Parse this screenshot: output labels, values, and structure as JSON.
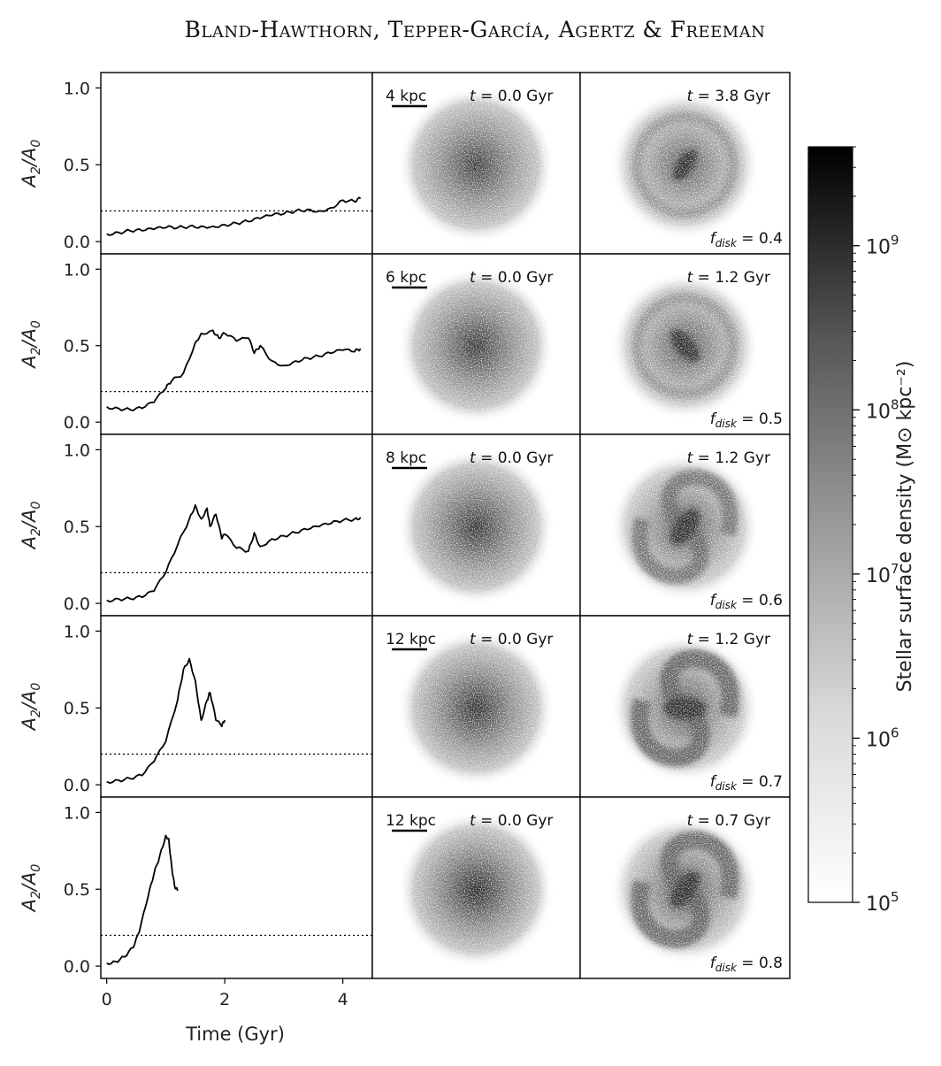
{
  "header": {
    "authors": "Bland-Hawthorn, Tepper-García, Agertz & Freeman"
  },
  "colorbar": {
    "label": "Stellar surface density (M⊙ kpc⁻²)",
    "ticks": [
      "10",
      "10",
      "10",
      "10",
      "10"
    ],
    "tick_exponents": [
      "9",
      "8",
      "7",
      "6",
      "5"
    ],
    "scale": "log",
    "range": [
      100000,
      4000000000
    ],
    "colormap": "grayscale (white to black)"
  },
  "chart_data": [
    {
      "type": "line",
      "ylabel": "A2/A0",
      "xlabel": "",
      "ylim": [
        -0.08,
        1.1
      ],
      "xlim": [
        -0.1,
        4.5
      ],
      "yticks": [
        "0.0",
        "0.5",
        "1.0"
      ],
      "xticks": [],
      "threshold": 0.2,
      "series": [
        {
          "x": [
            0,
            0.2,
            0.4,
            0.6,
            0.8,
            1.0,
            1.2,
            1.4,
            1.6,
            1.8,
            2.0,
            2.2,
            2.4,
            2.6,
            2.8,
            3.0,
            3.2,
            3.4,
            3.6,
            3.8,
            4.0,
            4.2,
            4.3
          ],
          "y": [
            0.05,
            0.06,
            0.07,
            0.07,
            0.08,
            0.09,
            0.09,
            0.1,
            0.1,
            0.1,
            0.11,
            0.12,
            0.13,
            0.15,
            0.17,
            0.18,
            0.2,
            0.21,
            0.2,
            0.22,
            0.27,
            0.26,
            0.28
          ]
        }
      ]
    },
    {
      "type": "line",
      "ylabel": "A2/A0",
      "xlabel": "",
      "ylim": [
        -0.08,
        1.1
      ],
      "xlim": [
        -0.1,
        4.5
      ],
      "yticks": [
        "0.0",
        "0.5",
        "1.0"
      ],
      "xticks": [],
      "threshold": 0.2,
      "series": [
        {
          "x": [
            0,
            0.2,
            0.4,
            0.6,
            0.8,
            1.0,
            1.1,
            1.3,
            1.5,
            1.6,
            1.8,
            1.9,
            2.0,
            2.2,
            2.4,
            2.5,
            2.6,
            2.8,
            3.0,
            3.2,
            3.4,
            3.6,
            3.8,
            4.0,
            4.2,
            4.3
          ],
          "y": [
            0.1,
            0.09,
            0.08,
            0.09,
            0.13,
            0.22,
            0.27,
            0.32,
            0.52,
            0.58,
            0.6,
            0.55,
            0.58,
            0.53,
            0.55,
            0.45,
            0.5,
            0.4,
            0.37,
            0.4,
            0.42,
            0.43,
            0.45,
            0.47,
            0.46,
            0.48
          ]
        }
      ]
    },
    {
      "type": "line",
      "ylabel": "A2/A0",
      "xlabel": "",
      "ylim": [
        -0.08,
        1.1
      ],
      "xlim": [
        -0.1,
        4.5
      ],
      "yticks": [
        "0.0",
        "0.5",
        "1.0"
      ],
      "xticks": [],
      "threshold": 0.2,
      "series": [
        {
          "x": [
            0,
            0.2,
            0.4,
            0.6,
            0.8,
            1.0,
            1.2,
            1.4,
            1.5,
            1.6,
            1.7,
            1.75,
            1.85,
            1.95,
            2.0,
            2.2,
            2.4,
            2.5,
            2.6,
            2.8,
            3.0,
            3.2,
            3.4,
            3.6,
            3.8,
            4.0,
            4.2,
            4.3
          ],
          "y": [
            0.02,
            0.03,
            0.03,
            0.04,
            0.08,
            0.2,
            0.38,
            0.55,
            0.64,
            0.55,
            0.62,
            0.5,
            0.58,
            0.42,
            0.45,
            0.36,
            0.34,
            0.46,
            0.37,
            0.42,
            0.44,
            0.46,
            0.48,
            0.5,
            0.52,
            0.54,
            0.55,
            0.56
          ]
        }
      ]
    },
    {
      "type": "line",
      "ylabel": "A2/A0",
      "xlabel": "",
      "ylim": [
        -0.08,
        1.1
      ],
      "xlim": [
        -0.1,
        4.5
      ],
      "yticks": [
        "0.0",
        "0.5",
        "1.0"
      ],
      "xticks": [],
      "threshold": 0.2,
      "series": [
        {
          "x": [
            0,
            0.2,
            0.4,
            0.6,
            0.8,
            1.0,
            1.2,
            1.3,
            1.4,
            1.5,
            1.6,
            1.7,
            1.75,
            1.85,
            1.95,
            2.0
          ],
          "y": [
            0.02,
            0.03,
            0.04,
            0.06,
            0.15,
            0.28,
            0.55,
            0.75,
            0.82,
            0.68,
            0.42,
            0.55,
            0.6,
            0.42,
            0.38,
            0.42
          ]
        }
      ]
    },
    {
      "type": "line",
      "ylabel": "A2/A0",
      "xlabel": "Time (Gyr)",
      "ylim": [
        -0.08,
        1.1
      ],
      "xlim": [
        -0.1,
        4.5
      ],
      "yticks": [
        "0.0",
        "0.5",
        "1.0"
      ],
      "xticks": [
        "0",
        "2",
        "4"
      ],
      "threshold": 0.2,
      "series": [
        {
          "x": [
            0,
            0.15,
            0.3,
            0.45,
            0.55,
            0.7,
            0.8,
            0.9,
            1.0,
            1.05,
            1.1,
            1.15,
            1.2
          ],
          "y": [
            0.02,
            0.03,
            0.06,
            0.12,
            0.22,
            0.45,
            0.6,
            0.72,
            0.85,
            0.83,
            0.65,
            0.52,
            0.49
          ]
        }
      ]
    }
  ],
  "panels": [
    {
      "scale_label": "4 kpc",
      "t0_label": "0.0 Gyr",
      "t1_label": "3.8 Gyr",
      "fdisk": "0.4",
      "disk_level": 0.55,
      "bar_strength": 0.3,
      "arms": 0.2
    },
    {
      "scale_label": "6 kpc",
      "t0_label": "0.0 Gyr",
      "t1_label": "1.2 Gyr",
      "fdisk": "0.5",
      "disk_level": 0.6,
      "bar_strength": 0.45,
      "arms": 0.3
    },
    {
      "scale_label": "8 kpc",
      "t0_label": "0.0 Gyr",
      "t1_label": "1.2 Gyr",
      "fdisk": "0.6",
      "disk_level": 0.62,
      "bar_strength": 0.55,
      "arms": 0.45
    },
    {
      "scale_label": "12 kpc",
      "t0_label": "0.0 Gyr",
      "t1_label": "1.2 Gyr",
      "fdisk": "0.7",
      "disk_level": 0.65,
      "bar_strength": 0.6,
      "arms": 0.8
    },
    {
      "scale_label": "12 kpc",
      "t0_label": "0.0 Gyr",
      "t1_label": "0.7 Gyr",
      "fdisk": "0.8",
      "disk_level": 0.7,
      "bar_strength": 0.55,
      "arms": 0.75
    }
  ],
  "panel_text": {
    "t_symbol": "t",
    "equals": " = ",
    "f_symbol": "f",
    "f_subscript": "disk"
  }
}
